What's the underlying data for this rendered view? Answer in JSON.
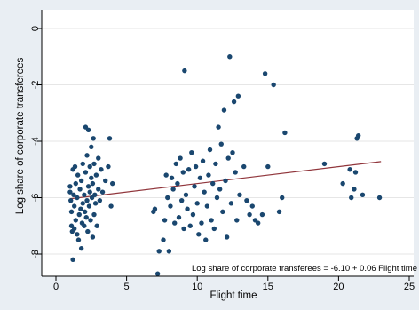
{
  "chart_data": {
    "type": "scatter",
    "title": "",
    "xlabel": "Flight time",
    "ylabel": "Log share of corporate transferees",
    "xlim": [
      0,
      25
    ],
    "ylim": [
      -9,
      0
    ],
    "xticks": [
      0,
      5,
      10,
      15,
      20,
      25
    ],
    "yticks": [
      -8,
      -6,
      -4,
      -2,
      0
    ],
    "grid": "horizontal",
    "colors": {
      "background": "#e9eef3",
      "plot": "#ffffff",
      "points": "#1a476f",
      "fit_line": "#90353b",
      "grid": "#e6e6e6"
    },
    "fit": {
      "intercept": -6.1,
      "slope": 0.06,
      "x_range": [
        1,
        23
      ],
      "label": "Log share of corporate transferees =  -6.10 +  0.06 Flight time"
    },
    "points": [
      [
        1.0,
        -5.6
      ],
      [
        1.0,
        -5.8
      ],
      [
        1.05,
        -6.1
      ],
      [
        1.1,
        -6.5
      ],
      [
        1.1,
        -7.0
      ],
      [
        1.15,
        -7.2
      ],
      [
        1.2,
        -8.2
      ],
      [
        1.2,
        -5.0
      ],
      [
        1.25,
        -5.9
      ],
      [
        1.3,
        -6.3
      ],
      [
        1.3,
        -7.1
      ],
      [
        1.35,
        -4.9
      ],
      [
        1.4,
        -5.5
      ],
      [
        1.4,
        -6.8
      ],
      [
        1.5,
        -7.3
      ],
      [
        1.5,
        -6.0
      ],
      [
        1.55,
        -5.2
      ],
      [
        1.6,
        -7.5
      ],
      [
        1.65,
        -6.6
      ],
      [
        1.7,
        -5.7
      ],
      [
        1.75,
        -6.4
      ],
      [
        1.8,
        -5.4
      ],
      [
        1.8,
        -7.8
      ],
      [
        1.85,
        -6.9
      ],
      [
        1.9,
        -4.8
      ],
      [
        1.9,
        -6.2
      ],
      [
        2.0,
        -5.9
      ],
      [
        2.0,
        -7.0
      ],
      [
        2.05,
        -6.5
      ],
      [
        2.1,
        -3.5
      ],
      [
        2.1,
        -5.1
      ],
      [
        2.15,
        -6.7
      ],
      [
        2.2,
        -4.5
      ],
      [
        2.2,
        -6.1
      ],
      [
        2.25,
        -7.2
      ],
      [
        2.3,
        -5.6
      ],
      [
        2.3,
        -3.6
      ],
      [
        2.35,
        -6.3
      ],
      [
        2.4,
        -4.9
      ],
      [
        2.4,
        -5.8
      ],
      [
        2.45,
        -6.8
      ],
      [
        2.5,
        -4.2
      ],
      [
        2.5,
        -5.3
      ],
      [
        2.55,
        -6.0
      ],
      [
        2.6,
        -7.4
      ],
      [
        2.6,
        -5.5
      ],
      [
        2.65,
        -3.9
      ],
      [
        2.7,
        -6.6
      ],
      [
        2.7,
        -4.8
      ],
      [
        2.75,
        -5.9
      ],
      [
        2.8,
        -6.2
      ],
      [
        2.85,
        -5.2
      ],
      [
        2.9,
        -7.0
      ],
      [
        3.0,
        -5.7
      ],
      [
        3.0,
        -4.6
      ],
      [
        3.1,
        -6.1
      ],
      [
        3.2,
        -5.0
      ],
      [
        3.3,
        -5.8
      ],
      [
        3.5,
        -5.4
      ],
      [
        3.7,
        -4.9
      ],
      [
        3.8,
        -3.9
      ],
      [
        3.9,
        -6.3
      ],
      [
        4.0,
        -5.5
      ],
      [
        6.9,
        -6.5
      ],
      [
        7.0,
        -6.4
      ],
      [
        7.2,
        -8.7
      ],
      [
        7.3,
        -7.9
      ],
      [
        7.6,
        -7.5
      ],
      [
        7.7,
        -6.8
      ],
      [
        7.8,
        -5.2
      ],
      [
        7.9,
        -6.0
      ],
      [
        8.0,
        -7.9
      ],
      [
        8.1,
        -6.3
      ],
      [
        8.2,
        -5.3
      ],
      [
        8.3,
        -5.7
      ],
      [
        8.4,
        -6.9
      ],
      [
        8.5,
        -4.8
      ],
      [
        8.6,
        -5.5
      ],
      [
        8.7,
        -6.7
      ],
      [
        8.8,
        -4.6
      ],
      [
        8.9,
        -6.1
      ],
      [
        9.0,
        -5.1
      ],
      [
        9.05,
        -7.1
      ],
      [
        9.1,
        -1.5
      ],
      [
        9.2,
        -5.9
      ],
      [
        9.3,
        -6.4
      ],
      [
        9.4,
        -5.0
      ],
      [
        9.5,
        -7.0
      ],
      [
        9.6,
        -4.4
      ],
      [
        9.7,
        -6.6
      ],
      [
        9.8,
        -5.6
      ],
      [
        9.9,
        -4.9
      ],
      [
        10.0,
        -6.2
      ],
      [
        10.1,
        -7.3
      ],
      [
        10.2,
        -5.3
      ],
      [
        10.3,
        -6.9
      ],
      [
        10.4,
        -4.7
      ],
      [
        10.5,
        -5.8
      ],
      [
        10.6,
        -7.5
      ],
      [
        10.7,
        -6.3
      ],
      [
        10.8,
        -5.2
      ],
      [
        10.9,
        -4.3
      ],
      [
        11.0,
        -6.8
      ],
      [
        11.1,
        -5.5
      ],
      [
        11.2,
        -7.1
      ],
      [
        11.3,
        -4.8
      ],
      [
        11.4,
        -6.0
      ],
      [
        11.5,
        -3.5
      ],
      [
        11.6,
        -5.7
      ],
      [
        11.7,
        -4.1
      ],
      [
        11.8,
        -6.5
      ],
      [
        11.9,
        -2.9
      ],
      [
        12.0,
        -5.4
      ],
      [
        12.1,
        -7.4
      ],
      [
        12.2,
        -4.6
      ],
      [
        12.3,
        -1.0
      ],
      [
        12.4,
        -6.2
      ],
      [
        12.5,
        -4.4
      ],
      [
        12.6,
        -2.6
      ],
      [
        12.7,
        -5.1
      ],
      [
        12.8,
        -6.8
      ],
      [
        12.9,
        -2.4
      ],
      [
        13.0,
        -5.9
      ],
      [
        13.3,
        -4.9
      ],
      [
        13.5,
        -6.1
      ],
      [
        13.7,
        -6.6
      ],
      [
        13.9,
        -6.3
      ],
      [
        14.1,
        -6.8
      ],
      [
        14.3,
        -6.9
      ],
      [
        14.6,
        -6.6
      ],
      [
        14.8,
        -1.6
      ],
      [
        15.0,
        -4.9
      ],
      [
        15.4,
        -2.0
      ],
      [
        15.8,
        -6.5
      ],
      [
        16.0,
        -6.0
      ],
      [
        16.2,
        -3.7
      ],
      [
        19.0,
        -4.8
      ],
      [
        20.3,
        -5.5
      ],
      [
        20.8,
        -5.0
      ],
      [
        20.9,
        -6.0
      ],
      [
        21.1,
        -5.7
      ],
      [
        21.2,
        -5.1
      ],
      [
        21.3,
        -3.9
      ],
      [
        21.4,
        -3.8
      ],
      [
        21.7,
        -5.9
      ],
      [
        22.9,
        -6.0
      ]
    ]
  }
}
